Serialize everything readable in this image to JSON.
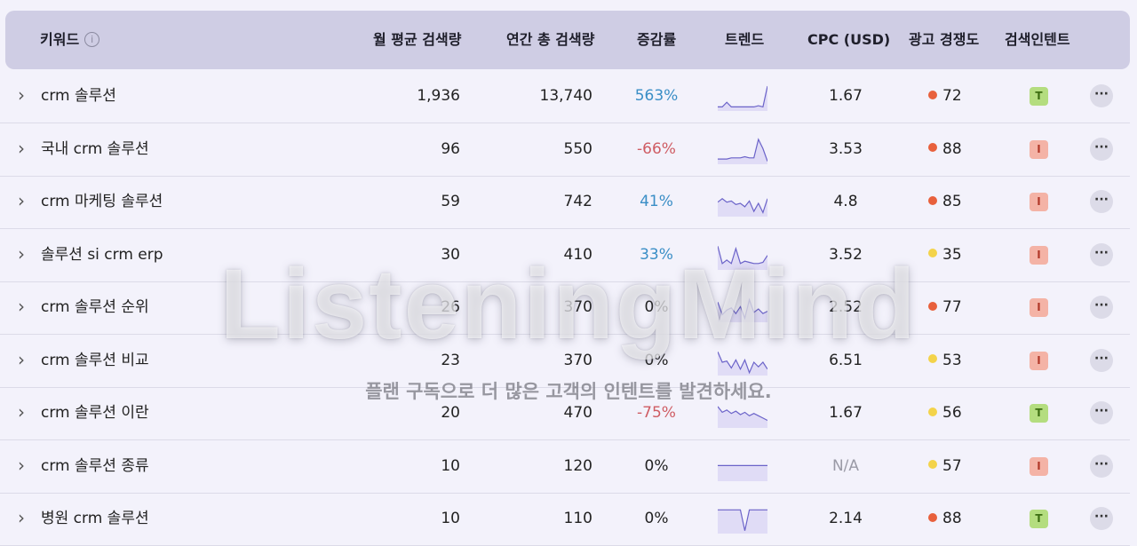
{
  "header": {
    "keyword": "키워드",
    "info_glyph": "i",
    "monthly": "월 평균 검색량",
    "yearly": "연간 총 검색량",
    "change": "증감률",
    "trend": "트렌드",
    "cpc": "CPC (USD)",
    "competition": "광고 경쟁도",
    "intent": "검색인텐트"
  },
  "chevron_glyph": "›",
  "more_glyph": "···",
  "rows": [
    {
      "keyword": "crm 솔루션",
      "monthly": "1,936",
      "yearly": "13,740",
      "change": "563%",
      "change_type": "pos",
      "cpc": "1.67",
      "comp_level": "high",
      "competition": "72",
      "intent": "T",
      "trend": [
        0.1,
        0.1,
        0.3,
        0.1,
        0.1,
        0.1,
        0.1,
        0.1,
        0.1,
        0.15,
        0.1,
        1.0
      ]
    },
    {
      "keyword": "국내 crm 솔루션",
      "monthly": "96",
      "yearly": "550",
      "change": "-66%",
      "change_type": "neg",
      "cpc": "3.53",
      "comp_level": "high",
      "competition": "88",
      "intent": "I",
      "trend": [
        0.15,
        0.15,
        0.15,
        0.2,
        0.2,
        0.2,
        0.25,
        0.2,
        0.2,
        1.0,
        0.6,
        0.05
      ]
    },
    {
      "keyword": "crm 마케팅 솔루션",
      "monthly": "59",
      "yearly": "742",
      "change": "41%",
      "change_type": "pos",
      "cpc": "4.8",
      "comp_level": "high",
      "competition": "85",
      "intent": "I",
      "trend": [
        0.55,
        0.7,
        0.55,
        0.6,
        0.45,
        0.5,
        0.35,
        0.6,
        0.15,
        0.5,
        0.1,
        0.7
      ]
    },
    {
      "keyword": "솔루션 si crm erp",
      "monthly": "30",
      "yearly": "410",
      "change": "33%",
      "change_type": "pos",
      "cpc": "3.52",
      "comp_level": "mid",
      "competition": "35",
      "intent": "I",
      "trend": [
        0.95,
        0.2,
        0.35,
        0.2,
        0.85,
        0.2,
        0.3,
        0.25,
        0.2,
        0.2,
        0.25,
        0.55
      ]
    },
    {
      "keyword": "crm 솔루션 순위",
      "monthly": "26",
      "yearly": "370",
      "change": "0%",
      "change_type": "zero",
      "cpc": "2.52",
      "comp_level": "high",
      "competition": "77",
      "intent": "I",
      "trend": [
        0.8,
        0.25,
        0.45,
        0.55,
        0.3,
        0.6,
        0.1,
        0.9,
        0.35,
        0.5,
        0.3,
        0.4
      ]
    },
    {
      "keyword": "crm 솔루션 비교",
      "monthly": "23",
      "yearly": "370",
      "change": "0%",
      "change_type": "zero",
      "cpc": "6.51",
      "comp_level": "mid",
      "competition": "53",
      "intent": "I",
      "trend": [
        0.95,
        0.5,
        0.55,
        0.25,
        0.6,
        0.2,
        0.6,
        0.05,
        0.5,
        0.3,
        0.5,
        0.2
      ]
    },
    {
      "keyword": "crm 솔루션 이란",
      "monthly": "20",
      "yearly": "470",
      "change": "-75%",
      "change_type": "neg",
      "cpc": "1.67",
      "comp_level": "mid",
      "competition": "56",
      "intent": "T",
      "trend": [
        0.85,
        0.6,
        0.7,
        0.55,
        0.65,
        0.5,
        0.6,
        0.45,
        0.55,
        0.45,
        0.35,
        0.25
      ]
    },
    {
      "keyword": "crm 솔루션 종류",
      "monthly": "10",
      "yearly": "120",
      "change": "0%",
      "change_type": "zero",
      "cpc": "N/A",
      "comp_level": "mid",
      "competition": "57",
      "intent": "I",
      "trend": [
        0.6,
        0.6,
        0.6,
        0.6,
        0.6,
        0.6,
        0.6,
        0.6,
        0.6,
        0.6,
        0.6,
        0.6
      ]
    },
    {
      "keyword": "병원 crm 솔루션",
      "monthly": "10",
      "yearly": "110",
      "change": "0%",
      "change_type": "zero",
      "cpc": "2.14",
      "comp_level": "high",
      "competition": "88",
      "intent": "T",
      "trend": [
        0.95,
        0.95,
        0.95,
        0.95,
        0.95,
        0.95,
        0.05,
        0.95,
        0.95,
        0.95,
        0.95,
        0.95
      ]
    }
  ],
  "colors": {
    "comp_high": "#e8603c",
    "comp_mid": "#f3d34a",
    "trend_line": "#6b63c9",
    "trend_fill": "#cfcaf3"
  },
  "watermark": {
    "brand": "ListeningMind",
    "message": "플랜 구독으로 더 많은 고객의 인텐트를 발견하세요."
  }
}
